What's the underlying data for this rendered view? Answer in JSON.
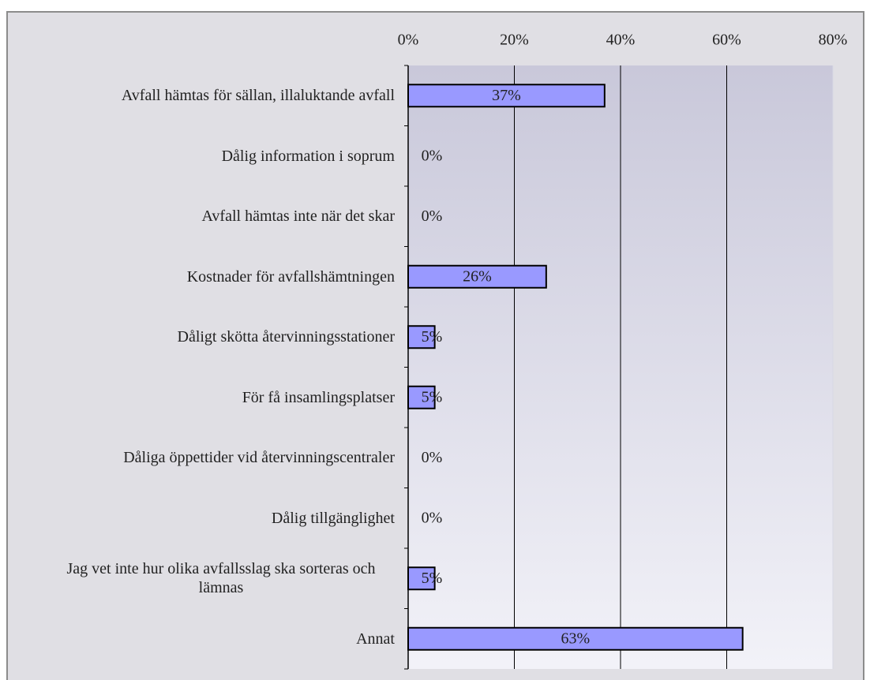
{
  "chart_data": {
    "type": "bar",
    "orientation": "horizontal",
    "categories": [
      "Avfall hämtas för sällan, illaluktande avfall",
      "Dålig information i soprum",
      "Avfall hämtas inte när det skar",
      "Kostnader för avfallshämtningen",
      "Dåligt skötta återvinningsstationer",
      "För få insamlingsplatser",
      "Dåliga öppettider vid återvinningscentraler",
      "Dålig tillgänglighet",
      "Jag vet inte hur olika avfallsslag ska sorteras och lämnas",
      "Annat"
    ],
    "values": [
      37,
      0,
      0,
      26,
      5,
      5,
      0,
      0,
      5,
      63
    ],
    "value_labels": [
      "37%",
      "0%",
      "0%",
      "26%",
      "5%",
      "5%",
      "0%",
      "0%",
      "5%",
      "63%"
    ],
    "color": "#9999ff",
    "xlim": [
      0,
      80
    ],
    "xticks": [
      {
        "value": 0,
        "label": "0%"
      },
      {
        "value": 20,
        "label": "20%"
      },
      {
        "value": 40,
        "label": "40%"
      },
      {
        "value": 60,
        "label": "60%"
      },
      {
        "value": 80,
        "label": "80%"
      }
    ],
    "grid": true
  }
}
